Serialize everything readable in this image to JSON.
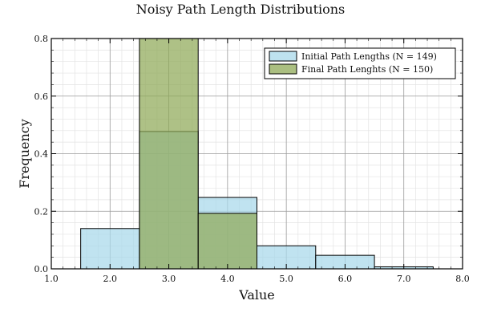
{
  "chart_data": {
    "type": "bar",
    "title": "Noisy Path Length Distributions",
    "xlabel": "Value",
    "ylabel": "Frequency",
    "xlim": [
      1.0,
      8.0
    ],
    "ylim": [
      0.0,
      0.8
    ],
    "xticks": [
      1.0,
      2.0,
      3.0,
      4.0,
      5.0,
      6.0,
      7.0,
      8.0
    ],
    "xtick_labels": [
      "1.0",
      "2.0",
      "3.0",
      "4.0",
      "5.0",
      "6.0",
      "7.0",
      "8.0"
    ],
    "yticks": [
      0.0,
      0.2,
      0.4,
      0.6,
      0.8
    ],
    "ytick_labels": [
      "0.0",
      "0.2",
      "0.4",
      "0.6",
      "0.8"
    ],
    "grid": true,
    "legend_position": "top-right",
    "series": [
      {
        "name": "Initial Path Lengths (N = 149)",
        "color": "#a8d8ea",
        "bins": [
          {
            "x0": 1.5,
            "x1": 2.5,
            "value": 0.14
          },
          {
            "x0": 2.5,
            "x1": 3.5,
            "value": 0.477
          },
          {
            "x0": 3.5,
            "x1": 4.5,
            "value": 0.248
          },
          {
            "x0": 4.5,
            "x1": 5.5,
            "value": 0.08
          },
          {
            "x0": 5.5,
            "x1": 6.5,
            "value": 0.047
          },
          {
            "x0": 6.5,
            "x1": 7.5,
            "value": 0.007
          }
        ]
      },
      {
        "name": "Final Path Lenghts (N = 150)",
        "color": "#8fa957",
        "bins": [
          {
            "x0": 2.5,
            "x1": 3.5,
            "value": 0.807
          },
          {
            "x0": 3.5,
            "x1": 4.5,
            "value": 0.193
          }
        ]
      }
    ]
  }
}
